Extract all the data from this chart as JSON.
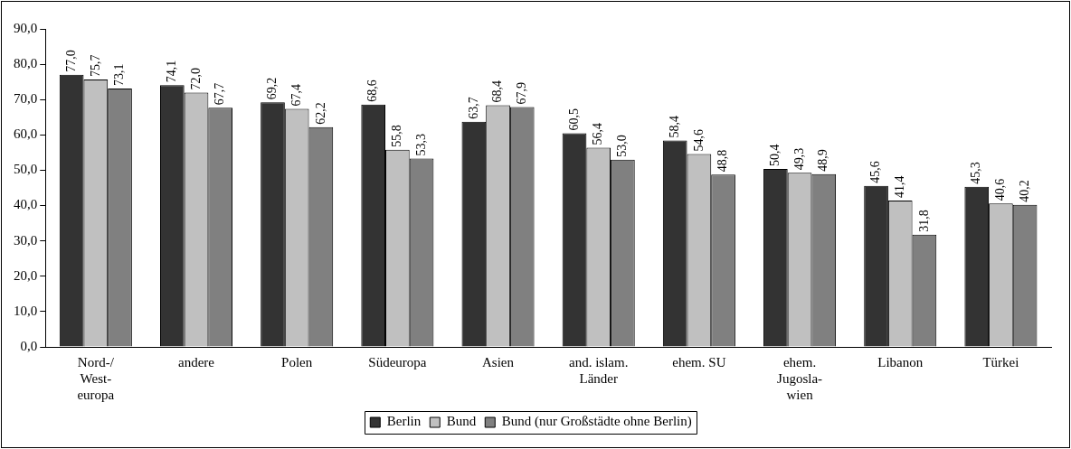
{
  "chart_data": {
    "type": "bar",
    "categories": [
      "Nord-/\nWest-\neuropa",
      "andere",
      "Polen",
      "Südeuropa",
      "Asien",
      "and. islam.\nLänder",
      "ehem. SU",
      "ehem.\nJugosla-\nwien",
      "Libanon",
      "Türkei"
    ],
    "series": [
      {
        "name": "Berlin",
        "color": "#333333",
        "values": [
          77.0,
          74.1,
          69.2,
          68.6,
          63.7,
          60.5,
          58.4,
          50.4,
          45.6,
          45.3
        ],
        "value_labels": [
          "77,0",
          "74,1",
          "69,2",
          "68,6",
          "63,7",
          "60,5",
          "58,4",
          "50,4",
          "45,6",
          "45,3"
        ]
      },
      {
        "name": "Bund",
        "color": "#c0c0c0",
        "values": [
          75.7,
          72.0,
          67.4,
          55.8,
          68.4,
          56.4,
          54.6,
          49.3,
          41.4,
          40.6
        ],
        "value_labels": [
          "75,7",
          "72,0",
          "67,4",
          "55,8",
          "68,4",
          "56,4",
          "54,6",
          "49,3",
          "41,4",
          "40,6"
        ]
      },
      {
        "name": "Bund (nur Großstädte ohne Berlin)",
        "color": "#808080",
        "values": [
          73.1,
          67.7,
          62.2,
          53.3,
          67.9,
          53.0,
          48.8,
          48.9,
          31.8,
          40.2
        ],
        "value_labels": [
          "73,1",
          "67,7",
          "62,2",
          "53,3",
          "67,9",
          "53,0",
          "48,8",
          "48,9",
          "31,8",
          "40,2"
        ]
      }
    ],
    "ylim": [
      0,
      90
    ],
    "yticks": [
      {
        "value": 0,
        "label": "0,0"
      },
      {
        "value": 10,
        "label": "10,0"
      },
      {
        "value": 20,
        "label": "20,0"
      },
      {
        "value": 30,
        "label": "30,0"
      },
      {
        "value": 40,
        "label": "40,0"
      },
      {
        "value": 50,
        "label": "50,0"
      },
      {
        "value": 60,
        "label": "60,0"
      },
      {
        "value": 70,
        "label": "70,0"
      },
      {
        "value": 80,
        "label": "80,0"
      },
      {
        "value": 90,
        "label": "90,0"
      }
    ],
    "grid": false,
    "legend": "bottom"
  }
}
